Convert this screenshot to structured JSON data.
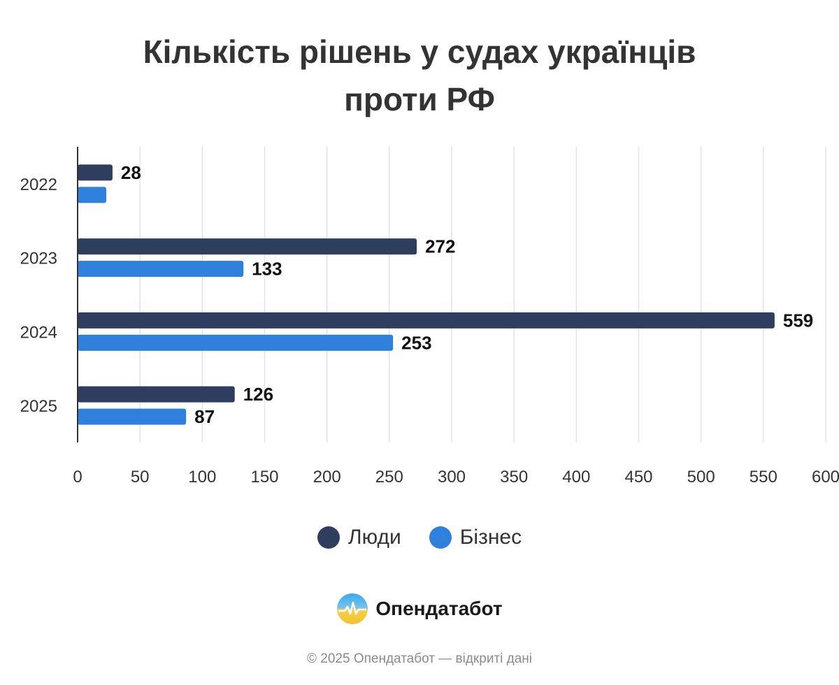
{
  "chart_data": {
    "type": "bar",
    "orientation": "horizontal",
    "title_line1": "Кількість рішень у судах українців",
    "title_line2": "проти РФ",
    "categories": [
      "2022",
      "2023",
      "2024",
      "2025"
    ],
    "series": [
      {
        "name": "Люди",
        "color": "#2f3e5e",
        "values": [
          28,
          272,
          559,
          126
        ],
        "labels": [
          "28",
          "272",
          "559",
          "126"
        ]
      },
      {
        "name": "Бізнес",
        "color": "#2f80dc",
        "values": [
          23,
          133,
          253,
          87
        ],
        "labels": [
          "",
          "133",
          "253",
          "87"
        ]
      }
    ],
    "xlim": [
      0,
      600
    ],
    "xticks": [
      0,
      50,
      100,
      150,
      200,
      250,
      300,
      350,
      400,
      450,
      500,
      550,
      600
    ],
    "grid": true,
    "legend_position": "bottom"
  },
  "brand": {
    "name": "Опендатабот",
    "logo_icon": "opendatabot-logo-icon"
  },
  "footer": {
    "text": "© 2025 Опендатабот — відкриті дані"
  }
}
